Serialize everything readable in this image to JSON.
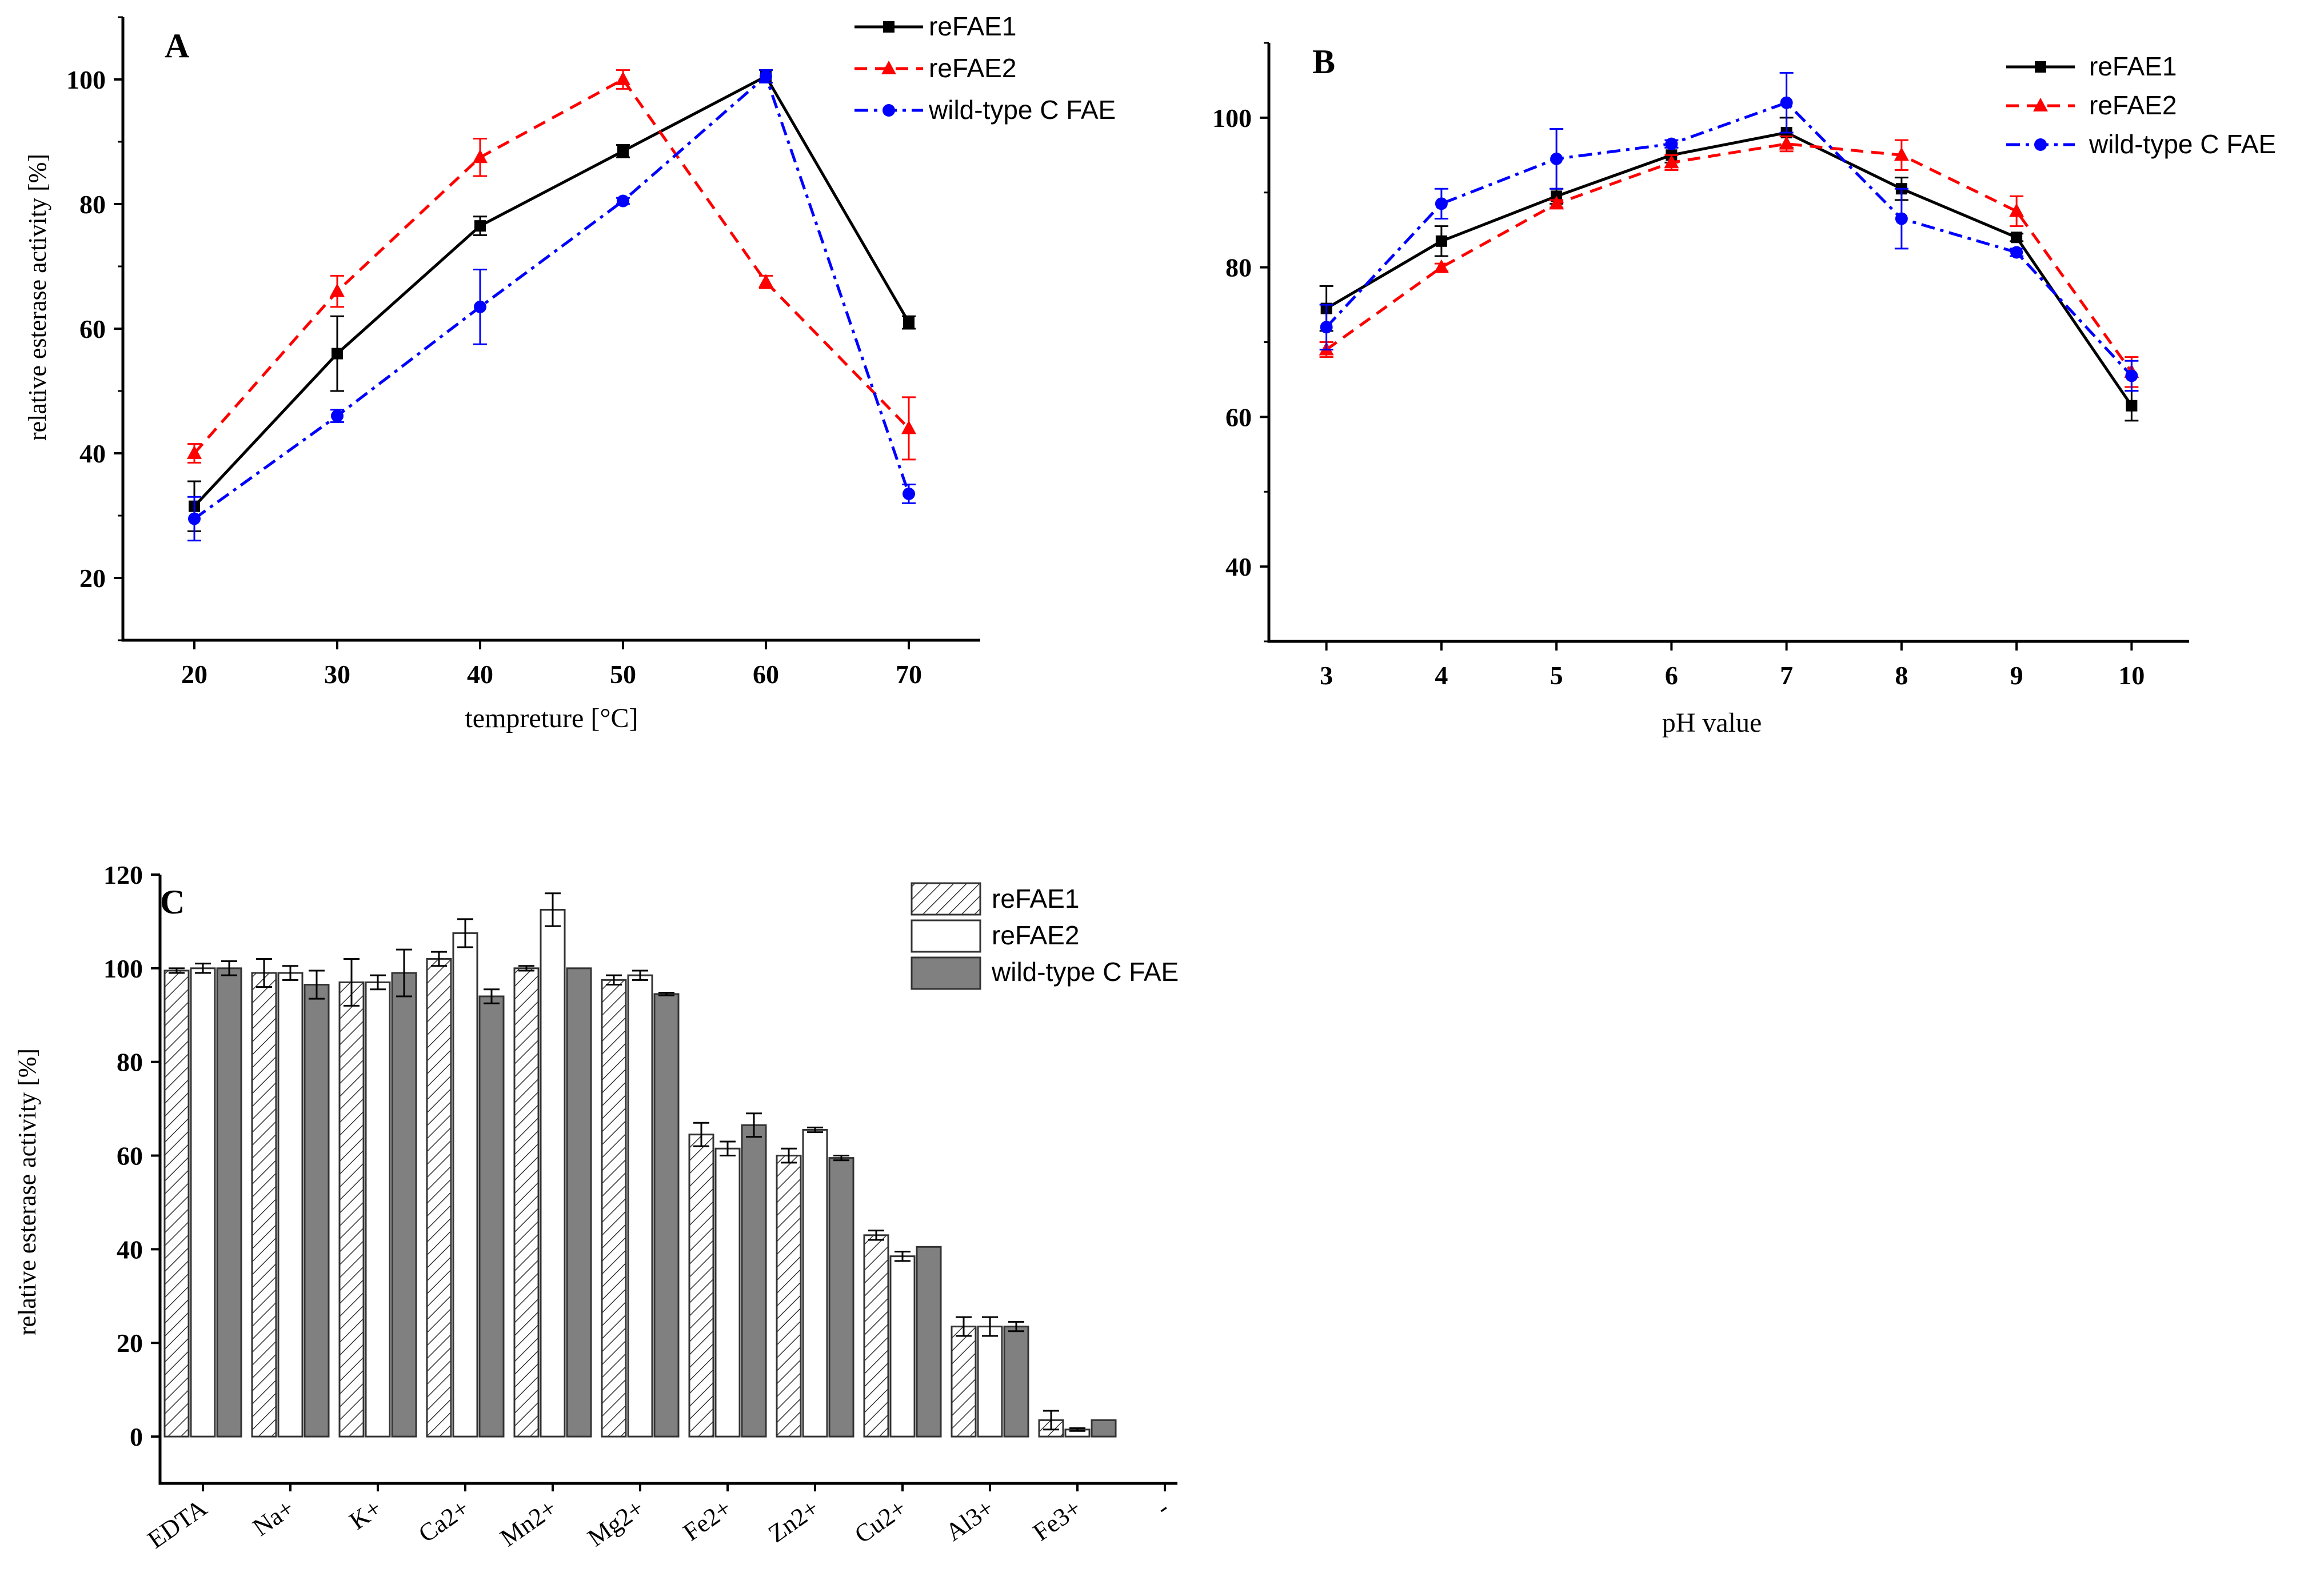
{
  "chart_data": [
    {
      "id": "A",
      "type": "line",
      "panel_label": "A",
      "xlabel": "tempreture [°C]",
      "ylabel": "relative esterase activity [%]",
      "x": [
        20,
        30,
        40,
        50,
        60,
        70
      ],
      "xticks": [
        "20",
        "30",
        "40",
        "50",
        "60",
        "70"
      ],
      "xlim": [
        15,
        75
      ],
      "ylim": [
        10,
        110
      ],
      "yticks": [
        "20",
        "40",
        "60",
        "80",
        "100"
      ],
      "legend_position": "top-right",
      "series": [
        {
          "name": "reFAE1",
          "color": "#000000",
          "dash": "solid",
          "marker": "square",
          "values": [
            31.5,
            56,
            76.5,
            88.5,
            100.5,
            61
          ],
          "errors": [
            4,
            6,
            1.5,
            1,
            1,
            1
          ]
        },
        {
          "name": "reFAE2",
          "color": "#ff0000",
          "dash": "dash",
          "marker": "triangle",
          "values": [
            40,
            66,
            87.5,
            100,
            67.5,
            44
          ],
          "errors": [
            1.5,
            2.5,
            3,
            1.5,
            1,
            5
          ]
        },
        {
          "name": "wild-type C FAE",
          "color": "#0000ff",
          "dash": "dashdot",
          "marker": "circle",
          "values": [
            29.5,
            46,
            63.5,
            80.5,
            100.5,
            33.5
          ],
          "errors": [
            3.5,
            1,
            6,
            0.5,
            1,
            1.5
          ]
        }
      ]
    },
    {
      "id": "B",
      "type": "line",
      "panel_label": "B",
      "xlabel": "pH value",
      "ylabel": "",
      "x": [
        3,
        4,
        5,
        6,
        7,
        8,
        9,
        10
      ],
      "xticks": [
        "3",
        "4",
        "5",
        "6",
        "7",
        "8",
        "9",
        "10"
      ],
      "xlim": [
        2.5,
        10.5
      ],
      "ylim": [
        30,
        110
      ],
      "yticks": [
        "40",
        "60",
        "80",
        "100"
      ],
      "legend_position": "top-right",
      "series": [
        {
          "name": "reFAE1",
          "color": "#000000",
          "dash": "solid",
          "marker": "square",
          "values": [
            74.5,
            83.5,
            89.5,
            95,
            98,
            90.5,
            84,
            61.5
          ],
          "errors": [
            3,
            2,
            1,
            1,
            2,
            1.5,
            0.5,
            2
          ]
        },
        {
          "name": "reFAE2",
          "color": "#ff0000",
          "dash": "dash",
          "marker": "triangle",
          "values": [
            69,
            80,
            88.5,
            94,
            96.5,
            95,
            87.5,
            66
          ],
          "errors": [
            1,
            0.5,
            0.5,
            1,
            1,
            2,
            2,
            2
          ]
        },
        {
          "name": "wild-type C FAE",
          "color": "#0000ff",
          "dash": "dashdot",
          "marker": "circle",
          "values": [
            72,
            88.5,
            94.5,
            96.5,
            102,
            86.5,
            82,
            65.5
          ],
          "errors": [
            3,
            2,
            4,
            0.5,
            4,
            4,
            0.5,
            2
          ]
        }
      ]
    },
    {
      "id": "C",
      "type": "bar",
      "panel_label": "C",
      "xlabel": "",
      "ylabel": "relative esterase activity [%]",
      "categories": [
        "EDTA",
        "Na+",
        "K+",
        "Ca2+",
        "Mn2+",
        "Mg2+",
        "Fe2+",
        "Zn2+",
        "Cu2+",
        "Al3+",
        "Fe3+"
      ],
      "extra_tick_label": "-",
      "ylim": [
        -10,
        120
      ],
      "yticks": [
        "0",
        "20",
        "40",
        "60",
        "80",
        "100",
        "120"
      ],
      "legend_position": "top-right",
      "series": [
        {
          "name": "reFAE1",
          "fill": "hatched",
          "values": [
            99.5,
            99,
            97,
            102,
            100,
            97.5,
            64.5,
            60,
            43,
            23.5,
            3.5
          ],
          "errors": [
            0.5,
            3,
            5,
            1.5,
            0.5,
            1,
            2.5,
            1.5,
            1,
            2,
            2
          ]
        },
        {
          "name": "reFAE2",
          "fill": "#ffffff",
          "values": [
            100,
            99,
            97,
            107.5,
            112.5,
            98.5,
            61.5,
            65.5,
            38.5,
            23.5,
            1.5
          ],
          "errors": [
            1,
            1.5,
            1.5,
            3,
            3.5,
            1,
            1.5,
            0.5,
            1,
            2,
            0.3
          ]
        },
        {
          "name": "wild-type C FAE",
          "fill": "#808080",
          "values": [
            100,
            96.5,
            99,
            94,
            100,
            94.5,
            66.5,
            59.5,
            40.5,
            23.5,
            3.5
          ],
          "errors": [
            1.5,
            3,
            5,
            1.5,
            0,
            0.3,
            2.5,
            0.5,
            0,
            1,
            0
          ]
        }
      ]
    }
  ]
}
